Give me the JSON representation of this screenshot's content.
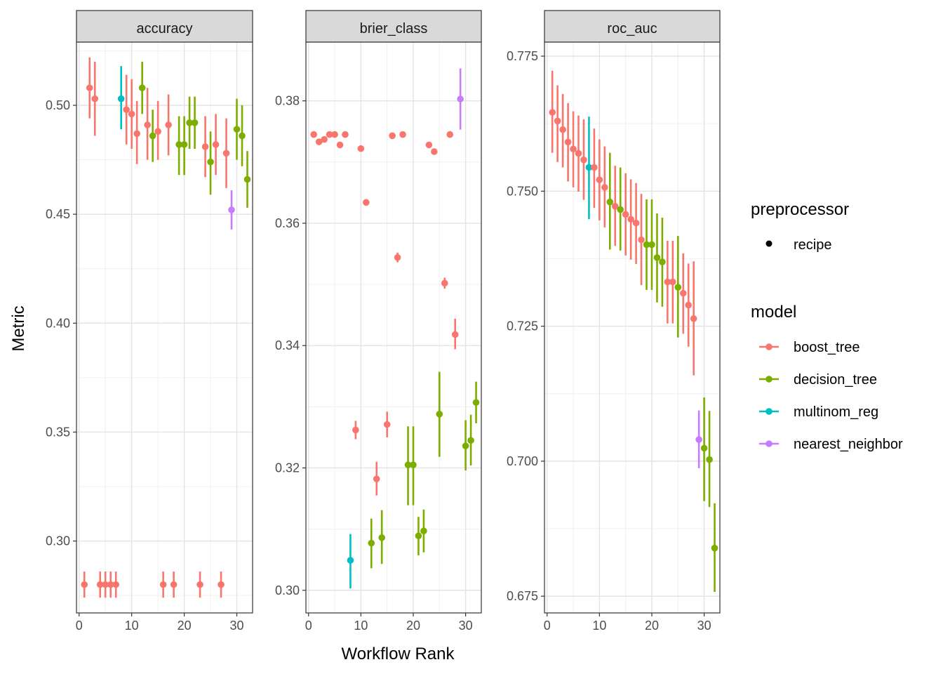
{
  "chart_data": {
    "type": "scatter",
    "style": "point-range (error bars) faceted by metric",
    "xlabel": "Workflow Rank",
    "ylabel": "Metric",
    "legend_position": "right",
    "legend": {
      "preprocessor": {
        "title": "preprocessor",
        "items": [
          "recipe"
        ]
      },
      "model": {
        "title": "model",
        "items": [
          {
            "name": "boost_tree",
            "color": "#F8766D"
          },
          {
            "name": "decision_tree",
            "color": "#7CAE00"
          },
          {
            "name": "multinom_reg",
            "color": "#00BFC4"
          },
          {
            "name": "nearest_neighbor",
            "color": "#C77CFF"
          }
        ]
      }
    },
    "colors": {
      "boost_tree": "#F8766D",
      "decision_tree": "#7CAE00",
      "multinom_reg": "#00BFC4",
      "nearest_neighbor": "#C77CFF"
    },
    "grid": true,
    "panels": [
      {
        "strip": "accuracy",
        "xlim": [
          -0.5,
          33
        ],
        "ylim": [
          0.267,
          0.529
        ],
        "xticks": [
          0,
          10,
          20,
          30
        ],
        "xtick_labels": [
          "0",
          "10",
          "20",
          "30"
        ],
        "yticks": [
          0.3,
          0.35,
          0.4,
          0.45,
          0.5
        ],
        "ytick_labels": [
          "0.30",
          "0.35",
          "0.40",
          "0.45",
          "0.50"
        ],
        "points": [
          {
            "x": 1,
            "y": 0.28,
            "lo": 0.274,
            "hi": 0.286,
            "model": "boost_tree"
          },
          {
            "x": 2,
            "y": 0.508,
            "lo": 0.494,
            "hi": 0.522,
            "model": "boost_tree"
          },
          {
            "x": 3,
            "y": 0.503,
            "lo": 0.486,
            "hi": 0.52,
            "model": "boost_tree"
          },
          {
            "x": 4,
            "y": 0.28,
            "lo": 0.274,
            "hi": 0.286,
            "model": "boost_tree"
          },
          {
            "x": 5,
            "y": 0.28,
            "lo": 0.274,
            "hi": 0.286,
            "model": "boost_tree"
          },
          {
            "x": 6,
            "y": 0.28,
            "lo": 0.274,
            "hi": 0.286,
            "model": "boost_tree"
          },
          {
            "x": 7,
            "y": 0.28,
            "lo": 0.274,
            "hi": 0.286,
            "model": "boost_tree"
          },
          {
            "x": 8,
            "y": 0.503,
            "lo": 0.489,
            "hi": 0.518,
            "model": "multinom_reg"
          },
          {
            "x": 9,
            "y": 0.498,
            "lo": 0.482,
            "hi": 0.514,
            "model": "boost_tree"
          },
          {
            "x": 10,
            "y": 0.496,
            "lo": 0.48,
            "hi": 0.512,
            "model": "boost_tree"
          },
          {
            "x": 11,
            "y": 0.487,
            "lo": 0.473,
            "hi": 0.502,
            "model": "boost_tree"
          },
          {
            "x": 12,
            "y": 0.508,
            "lo": 0.496,
            "hi": 0.52,
            "model": "decision_tree"
          },
          {
            "x": 13,
            "y": 0.491,
            "lo": 0.475,
            "hi": 0.508,
            "model": "boost_tree"
          },
          {
            "x": 14,
            "y": 0.486,
            "lo": 0.474,
            "hi": 0.498,
            "model": "decision_tree"
          },
          {
            "x": 15,
            "y": 0.488,
            "lo": 0.475,
            "hi": 0.502,
            "model": "boost_tree"
          },
          {
            "x": 16,
            "y": 0.28,
            "lo": 0.274,
            "hi": 0.286,
            "model": "boost_tree"
          },
          {
            "x": 17,
            "y": 0.491,
            "lo": 0.477,
            "hi": 0.505,
            "model": "boost_tree"
          },
          {
            "x": 18,
            "y": 0.28,
            "lo": 0.274,
            "hi": 0.286,
            "model": "boost_tree"
          },
          {
            "x": 19,
            "y": 0.482,
            "lo": 0.468,
            "hi": 0.495,
            "model": "decision_tree"
          },
          {
            "x": 20,
            "y": 0.482,
            "lo": 0.468,
            "hi": 0.495,
            "model": "decision_tree"
          },
          {
            "x": 21,
            "y": 0.492,
            "lo": 0.48,
            "hi": 0.504,
            "model": "decision_tree"
          },
          {
            "x": 22,
            "y": 0.492,
            "lo": 0.48,
            "hi": 0.504,
            "model": "decision_tree"
          },
          {
            "x": 23,
            "y": 0.28,
            "lo": 0.274,
            "hi": 0.286,
            "model": "boost_tree"
          },
          {
            "x": 24,
            "y": 0.481,
            "lo": 0.467,
            "hi": 0.495,
            "model": "boost_tree"
          },
          {
            "x": 25,
            "y": 0.474,
            "lo": 0.459,
            "hi": 0.488,
            "model": "decision_tree"
          },
          {
            "x": 26,
            "y": 0.482,
            "lo": 0.468,
            "hi": 0.496,
            "model": "boost_tree"
          },
          {
            "x": 27,
            "y": 0.28,
            "lo": 0.274,
            "hi": 0.286,
            "model": "boost_tree"
          },
          {
            "x": 28,
            "y": 0.478,
            "lo": 0.462,
            "hi": 0.494,
            "model": "boost_tree"
          },
          {
            "x": 29,
            "y": 0.452,
            "lo": 0.443,
            "hi": 0.461,
            "model": "nearest_neighbor"
          },
          {
            "x": 30,
            "y": 0.489,
            "lo": 0.475,
            "hi": 0.503,
            "model": "decision_tree"
          },
          {
            "x": 31,
            "y": 0.486,
            "lo": 0.472,
            "hi": 0.5,
            "model": "decision_tree"
          },
          {
            "x": 32,
            "y": 0.466,
            "lo": 0.453,
            "hi": 0.479,
            "model": "decision_tree"
          }
        ]
      },
      {
        "strip": "brier_class",
        "xlim": [
          -0.5,
          33
        ],
        "ylim": [
          0.2963,
          0.3896
        ],
        "xticks": [
          0,
          10,
          20,
          30
        ],
        "xtick_labels": [
          "0",
          "10",
          "20",
          "30"
        ],
        "yticks": [
          0.3,
          0.32,
          0.34,
          0.36,
          0.38
        ],
        "ytick_labels": [
          "0.30",
          "0.32",
          "0.34",
          "0.36",
          "0.38"
        ],
        "points": [
          {
            "x": 1,
            "y": 0.3745,
            "lo": 0.3741,
            "hi": 0.3749,
            "model": "boost_tree"
          },
          {
            "x": 2,
            "y": 0.3733,
            "lo": 0.3729,
            "hi": 0.3737,
            "model": "boost_tree"
          },
          {
            "x": 3,
            "y": 0.3737,
            "lo": 0.3733,
            "hi": 0.3741,
            "model": "boost_tree"
          },
          {
            "x": 4,
            "y": 0.3745,
            "lo": 0.3741,
            "hi": 0.3749,
            "model": "boost_tree"
          },
          {
            "x": 5,
            "y": 0.3745,
            "lo": 0.3741,
            "hi": 0.3749,
            "model": "boost_tree"
          },
          {
            "x": 6,
            "y": 0.3728,
            "lo": 0.3724,
            "hi": 0.3732,
            "model": "boost_tree"
          },
          {
            "x": 7,
            "y": 0.3745,
            "lo": 0.3741,
            "hi": 0.3749,
            "model": "boost_tree"
          },
          {
            "x": 8,
            "y": 0.3049,
            "lo": 0.3003,
            "hi": 0.3092,
            "model": "multinom_reg"
          },
          {
            "x": 9,
            "y": 0.3262,
            "lo": 0.3247,
            "hi": 0.3277,
            "model": "boost_tree"
          },
          {
            "x": 10,
            "y": 0.3722,
            "lo": 0.3718,
            "hi": 0.3726,
            "model": "boost_tree"
          },
          {
            "x": 11,
            "y": 0.3634,
            "lo": 0.363,
            "hi": 0.3638,
            "model": "boost_tree"
          },
          {
            "x": 12,
            "y": 0.3077,
            "lo": 0.3036,
            "hi": 0.3117,
            "model": "decision_tree"
          },
          {
            "x": 13,
            "y": 0.3182,
            "lo": 0.3155,
            "hi": 0.321,
            "model": "boost_tree"
          },
          {
            "x": 14,
            "y": 0.3086,
            "lo": 0.3043,
            "hi": 0.3131,
            "model": "decision_tree"
          },
          {
            "x": 15,
            "y": 0.3271,
            "lo": 0.325,
            "hi": 0.3292,
            "model": "boost_tree"
          },
          {
            "x": 16,
            "y": 0.3743,
            "lo": 0.3739,
            "hi": 0.3747,
            "model": "boost_tree"
          },
          {
            "x": 17,
            "y": 0.3544,
            "lo": 0.3536,
            "hi": 0.3552,
            "model": "boost_tree"
          },
          {
            "x": 18,
            "y": 0.3745,
            "lo": 0.3741,
            "hi": 0.3749,
            "model": "boost_tree"
          },
          {
            "x": 19,
            "y": 0.3205,
            "lo": 0.3139,
            "hi": 0.3268,
            "model": "decision_tree"
          },
          {
            "x": 20,
            "y": 0.3205,
            "lo": 0.3139,
            "hi": 0.3268,
            "model": "decision_tree"
          },
          {
            "x": 21,
            "y": 0.3089,
            "lo": 0.3057,
            "hi": 0.312,
            "model": "decision_tree"
          },
          {
            "x": 22,
            "y": 0.3097,
            "lo": 0.3062,
            "hi": 0.3132,
            "model": "decision_tree"
          },
          {
            "x": 23,
            "y": 0.3728,
            "lo": 0.3724,
            "hi": 0.3732,
            "model": "boost_tree"
          },
          {
            "x": 24,
            "y": 0.3717,
            "lo": 0.3713,
            "hi": 0.3721,
            "model": "boost_tree"
          },
          {
            "x": 25,
            "y": 0.3288,
            "lo": 0.3218,
            "hi": 0.3357,
            "model": "decision_tree"
          },
          {
            "x": 26,
            "y": 0.3502,
            "lo": 0.3493,
            "hi": 0.3511,
            "model": "boost_tree"
          },
          {
            "x": 27,
            "y": 0.3745,
            "lo": 0.3741,
            "hi": 0.3749,
            "model": "boost_tree"
          },
          {
            "x": 28,
            "y": 0.3418,
            "lo": 0.3394,
            "hi": 0.3444,
            "model": "boost_tree"
          },
          {
            "x": 29,
            "y": 0.3803,
            "lo": 0.3753,
            "hi": 0.3853,
            "model": "nearest_neighbor"
          },
          {
            "x": 30,
            "y": 0.3236,
            "lo": 0.3196,
            "hi": 0.3278,
            "model": "decision_tree"
          },
          {
            "x": 31,
            "y": 0.3245,
            "lo": 0.3204,
            "hi": 0.3287,
            "model": "decision_tree"
          },
          {
            "x": 32,
            "y": 0.3307,
            "lo": 0.3273,
            "hi": 0.3341,
            "model": "decision_tree"
          }
        ]
      },
      {
        "strip": "roc_auc",
        "xlim": [
          -0.5,
          33
        ],
        "ylim": [
          0.6719,
          0.7776
        ],
        "xticks": [
          0,
          10,
          20,
          30
        ],
        "xtick_labels": [
          "0",
          "10",
          "20",
          "30"
        ],
        "yticks": [
          0.675,
          0.7,
          0.725,
          0.75,
          0.775
        ],
        "ytick_labels": [
          "0.675",
          "0.700",
          "0.725",
          "0.750",
          "0.775"
        ],
        "points": [
          {
            "x": 1,
            "y": 0.7646,
            "lo": 0.7571,
            "hi": 0.7723,
            "model": "boost_tree"
          },
          {
            "x": 2,
            "y": 0.763,
            "lo": 0.7554,
            "hi": 0.7696,
            "model": "boost_tree"
          },
          {
            "x": 3,
            "y": 0.7614,
            "lo": 0.7544,
            "hi": 0.768,
            "model": "boost_tree"
          },
          {
            "x": 4,
            "y": 0.7591,
            "lo": 0.7518,
            "hi": 0.7663,
            "model": "boost_tree"
          },
          {
            "x": 5,
            "y": 0.7578,
            "lo": 0.7507,
            "hi": 0.7648,
            "model": "boost_tree"
          },
          {
            "x": 6,
            "y": 0.757,
            "lo": 0.7499,
            "hi": 0.764,
            "model": "boost_tree"
          },
          {
            "x": 7,
            "y": 0.7558,
            "lo": 0.7484,
            "hi": 0.7633,
            "model": "boost_tree"
          },
          {
            "x": 8,
            "y": 0.7544,
            "lo": 0.7448,
            "hi": 0.7638,
            "model": "multinom_reg"
          },
          {
            "x": 9,
            "y": 0.7544,
            "lo": 0.7469,
            "hi": 0.7616,
            "model": "boost_tree"
          },
          {
            "x": 10,
            "y": 0.7521,
            "lo": 0.7446,
            "hi": 0.7596,
            "model": "boost_tree"
          },
          {
            "x": 11,
            "y": 0.7507,
            "lo": 0.7433,
            "hi": 0.7583,
            "model": "boost_tree"
          },
          {
            "x": 12,
            "y": 0.748,
            "lo": 0.7392,
            "hi": 0.7571,
            "model": "decision_tree"
          },
          {
            "x": 13,
            "y": 0.7472,
            "lo": 0.7399,
            "hi": 0.7547,
            "model": "boost_tree"
          },
          {
            "x": 14,
            "y": 0.7466,
            "lo": 0.739,
            "hi": 0.7544,
            "model": "decision_tree"
          },
          {
            "x": 15,
            "y": 0.7457,
            "lo": 0.7381,
            "hi": 0.7533,
            "model": "boost_tree"
          },
          {
            "x": 16,
            "y": 0.7448,
            "lo": 0.7373,
            "hi": 0.7522,
            "model": "boost_tree"
          },
          {
            "x": 17,
            "y": 0.7441,
            "lo": 0.7365,
            "hi": 0.7515,
            "model": "boost_tree"
          },
          {
            "x": 18,
            "y": 0.741,
            "lo": 0.7326,
            "hi": 0.7495,
            "model": "boost_tree"
          },
          {
            "x": 19,
            "y": 0.7401,
            "lo": 0.7317,
            "hi": 0.7485,
            "model": "decision_tree"
          },
          {
            "x": 20,
            "y": 0.7401,
            "lo": 0.7317,
            "hi": 0.7485,
            "model": "decision_tree"
          },
          {
            "x": 21,
            "y": 0.7377,
            "lo": 0.7294,
            "hi": 0.7459,
            "model": "decision_tree"
          },
          {
            "x": 22,
            "y": 0.7369,
            "lo": 0.7286,
            "hi": 0.7451,
            "model": "decision_tree"
          },
          {
            "x": 23,
            "y": 0.7332,
            "lo": 0.7255,
            "hi": 0.7408,
            "model": "boost_tree"
          },
          {
            "x": 24,
            "y": 0.7332,
            "lo": 0.7255,
            "hi": 0.7408,
            "model": "boost_tree"
          },
          {
            "x": 25,
            "y": 0.7322,
            "lo": 0.7229,
            "hi": 0.7417,
            "model": "decision_tree"
          },
          {
            "x": 26,
            "y": 0.7311,
            "lo": 0.7236,
            "hi": 0.7385,
            "model": "boost_tree"
          },
          {
            "x": 27,
            "y": 0.7289,
            "lo": 0.7212,
            "hi": 0.7366,
            "model": "boost_tree"
          },
          {
            "x": 28,
            "y": 0.7264,
            "lo": 0.7159,
            "hi": 0.737,
            "model": "boost_tree"
          },
          {
            "x": 29,
            "y": 0.704,
            "lo": 0.6987,
            "hi": 0.7094,
            "model": "nearest_neighbor"
          },
          {
            "x": 30,
            "y": 0.7024,
            "lo": 0.6926,
            "hi": 0.7118,
            "model": "decision_tree"
          },
          {
            "x": 31,
            "y": 0.7003,
            "lo": 0.6915,
            "hi": 0.7093,
            "model": "decision_tree"
          },
          {
            "x": 32,
            "y": 0.6839,
            "lo": 0.6758,
            "hi": 0.6922,
            "model": "decision_tree"
          }
        ]
      }
    ]
  }
}
